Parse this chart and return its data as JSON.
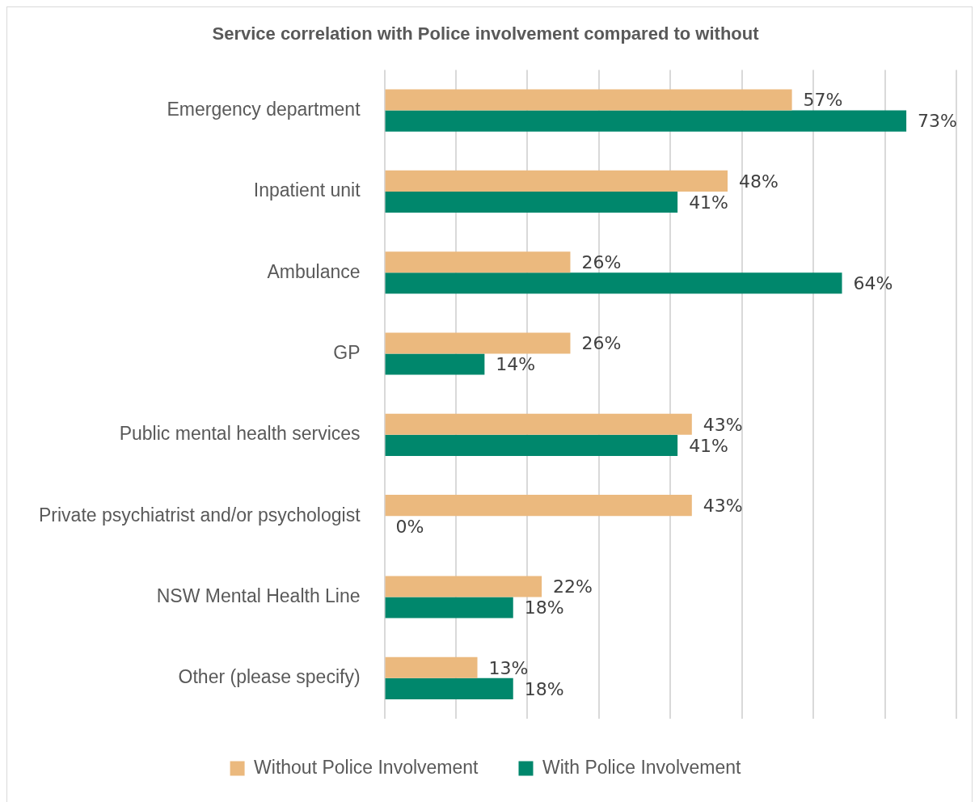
{
  "chart_data": {
    "type": "bar",
    "orientation": "horizontal",
    "title": "Service correlation with Police involvement compared to without",
    "categories": [
      "Emergency department",
      "Inpatient unit",
      "Ambulance",
      "GP",
      "Public mental health services",
      "Private psychiatrist and/or psychologist",
      "NSW Mental Health Line",
      "Other (please specify)"
    ],
    "series": [
      {
        "name": "Without Police Involvement",
        "color": "#ebb97e",
        "values": [
          57,
          48,
          26,
          26,
          43,
          43,
          22,
          13
        ],
        "value_labels": [
          "57%",
          "48%",
          "26%",
          "26%",
          "43%",
          "43%",
          "22%",
          "13%"
        ]
      },
      {
        "name": "With Police Involvement",
        "color": "#00876c",
        "values": [
          73,
          41,
          64,
          14,
          41,
          0,
          18,
          18
        ],
        "value_labels": [
          "73%",
          "41%",
          "64%",
          "14%",
          "41%",
          "0%",
          "18%",
          "18%"
        ]
      }
    ],
    "xlim": [
      0,
      80
    ],
    "xticks": [
      {
        "value": 0,
        "label": null
      },
      {
        "value": 10,
        "label": null
      },
      {
        "value": 20,
        "label": null
      },
      {
        "value": 30,
        "label": null
      },
      {
        "value": 40,
        "label": null
      },
      {
        "value": 50,
        "label": null
      },
      {
        "value": 60,
        "label": null
      },
      {
        "value": 70,
        "label": null
      },
      {
        "value": 80,
        "label": null
      }
    ],
    "grid": "x",
    "legend": "bottom",
    "tick_labels": "y"
  }
}
